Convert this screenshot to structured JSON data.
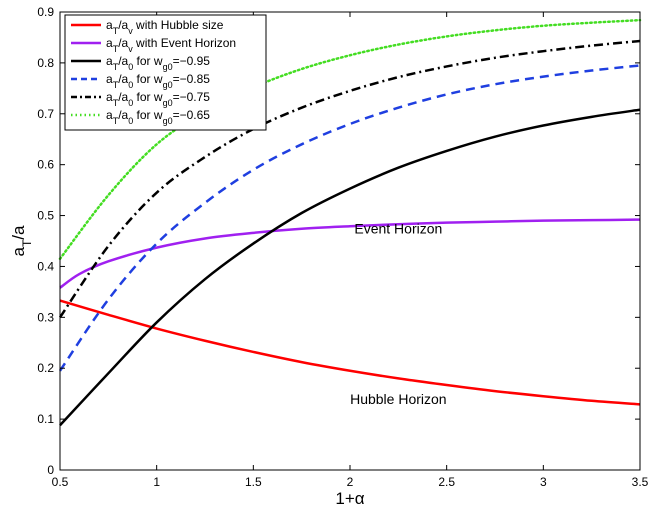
{
  "chart_data": {
    "type": "line",
    "xlabel": "1+α",
    "ylabel": "a_T/a",
    "xlim": [
      0.5,
      3.5
    ],
    "ylim": [
      0,
      0.9
    ],
    "xticks": [
      0.5,
      1,
      1.5,
      2,
      2.5,
      3,
      3.5
    ],
    "yticks": [
      0,
      0.1,
      0.2,
      0.3,
      0.4,
      0.5,
      0.6,
      0.7,
      0.8,
      0.9
    ],
    "grid": false,
    "legend_position": "top-left",
    "annotations": [
      {
        "text": "Event Horizon",
        "x": 2.25,
        "y": 0.465
      },
      {
        "text": "Hubble Horizon",
        "x": 2.25,
        "y": 0.13
      }
    ],
    "series": [
      {
        "name": "a_T/a_v with Hubble size",
        "color": "#ff0000",
        "dash": "solid",
        "x": [
          0.5,
          0.75,
          1.0,
          1.25,
          1.5,
          1.75,
          2.0,
          2.25,
          2.5,
          2.75,
          3.0,
          3.25,
          3.5
        ],
        "y": [
          0.333,
          0.305,
          0.278,
          0.254,
          0.232,
          0.212,
          0.195,
          0.18,
          0.167,
          0.155,
          0.145,
          0.136,
          0.129
        ]
      },
      {
        "name": "a_T/a_v with Event Horizon",
        "color": "#a020f0",
        "dash": "solid",
        "x": [
          0.5,
          0.6,
          0.75,
          1.0,
          1.25,
          1.5,
          1.75,
          2.0,
          2.25,
          2.5,
          2.75,
          3.0,
          3.25,
          3.5
        ],
        "y": [
          0.358,
          0.385,
          0.41,
          0.437,
          0.455,
          0.466,
          0.474,
          0.479,
          0.483,
          0.486,
          0.488,
          0.49,
          0.491,
          0.492
        ]
      },
      {
        "name": "a_T/a_0 for w_g0=−0.95",
        "color": "#000000",
        "dash": "solid",
        "x": [
          0.5,
          0.75,
          1.0,
          1.25,
          1.5,
          1.75,
          2.0,
          2.25,
          2.5,
          2.75,
          3.0,
          3.25,
          3.5
        ],
        "y": [
          0.088,
          0.19,
          0.29,
          0.375,
          0.445,
          0.505,
          0.553,
          0.594,
          0.627,
          0.655,
          0.677,
          0.694,
          0.708
        ]
      },
      {
        "name": "a_T/a_0 for w_g0=−0.85",
        "color": "#1f3fe0",
        "dash": "dashed",
        "x": [
          0.5,
          0.75,
          1.0,
          1.25,
          1.5,
          1.75,
          2.0,
          2.25,
          2.5,
          2.75,
          3.0,
          3.25,
          3.5
        ],
        "y": [
          0.195,
          0.335,
          0.445,
          0.525,
          0.59,
          0.64,
          0.68,
          0.712,
          0.738,
          0.758,
          0.773,
          0.785,
          0.795
        ]
      },
      {
        "name": "a_T/a_0 for w_g0=−0.75",
        "color": "#000000",
        "dash": "dashdot",
        "x": [
          0.5,
          0.75,
          1.0,
          1.25,
          1.5,
          1.75,
          2.0,
          2.25,
          2.5,
          2.75,
          3.0,
          3.25,
          3.5
        ],
        "y": [
          0.3,
          0.44,
          0.545,
          0.615,
          0.67,
          0.712,
          0.745,
          0.772,
          0.793,
          0.81,
          0.823,
          0.834,
          0.843
        ]
      },
      {
        "name": "a_T/a_0 for w_g0=−0.65",
        "color": "#44dd22",
        "dash": "dotted",
        "x": [
          0.5,
          0.75,
          1.0,
          1.25,
          1.5,
          1.75,
          2.0,
          2.25,
          2.5,
          2.75,
          3.0,
          3.25,
          3.5
        ],
        "y": [
          0.415,
          0.54,
          0.64,
          0.705,
          0.752,
          0.788,
          0.815,
          0.836,
          0.852,
          0.864,
          0.873,
          0.879,
          0.884
        ]
      }
    ]
  }
}
